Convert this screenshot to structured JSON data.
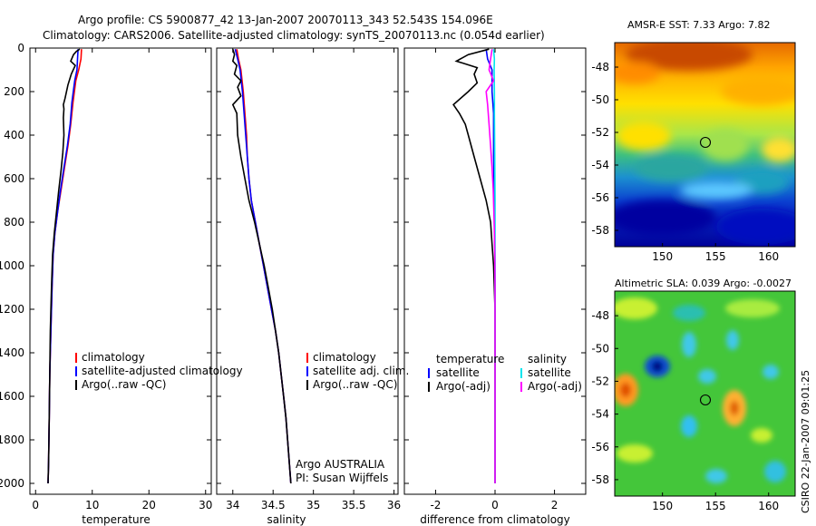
{
  "title": {
    "line1": "Argo profile: CS 5900877_42 13-Jan-2007 20070113_343 52.543S 154.096E",
    "line2": "Climatology: CARS2006. Satellite-adjusted climatology: synTS_20070113.nc (0.054d earlier)"
  },
  "credit": "CSIRO 22-Jan-2007 09:01:25",
  "colors": {
    "clim": "#ff0000",
    "sat": "#0000ff",
    "argo": "#000000",
    "cyan": "#00e5ee",
    "magenta": "#ff00ff"
  },
  "chart_data": [
    {
      "type": "line",
      "id": "temperature",
      "xlabel": "temperature",
      "xlim": [
        -1,
        31
      ],
      "ylim": [
        2050,
        0
      ],
      "xticks": [
        0,
        10,
        20,
        30
      ],
      "yticks": [
        0,
        200,
        400,
        600,
        800,
        1000,
        1200,
        1400,
        1600,
        1800,
        2000
      ],
      "legend": [
        "climatology",
        "satellite-adjusted climatology",
        "Argo(..raw -QC)"
      ],
      "series": [
        {
          "name": "climatology",
          "color": "#ff0000",
          "points": [
            [
              8.1,
              5
            ],
            [
              8.0,
              50
            ],
            [
              7.6,
              100
            ],
            [
              7.1,
              150
            ],
            [
              6.6,
              250
            ],
            [
              6.2,
              350
            ],
            [
              5.7,
              450
            ],
            [
              5.1,
              550
            ],
            [
              4.5,
              650
            ],
            [
              3.9,
              750
            ],
            [
              3.4,
              850
            ],
            [
              3.1,
              950
            ],
            [
              2.9,
              1100
            ],
            [
              2.7,
              1300
            ],
            [
              2.5,
              1500
            ],
            [
              2.4,
              1700
            ],
            [
              2.3,
              1900
            ],
            [
              2.2,
              2000
            ]
          ]
        },
        {
          "name": "satellite-adjusted climatology",
          "color": "#0000ff",
          "points": [
            [
              7.5,
              5
            ],
            [
              7.4,
              50
            ],
            [
              7.3,
              100
            ],
            [
              6.9,
              150
            ],
            [
              6.4,
              250
            ],
            [
              6.1,
              350
            ],
            [
              5.6,
              450
            ],
            [
              5.0,
              550
            ],
            [
              4.4,
              650
            ],
            [
              3.9,
              750
            ],
            [
              3.4,
              850
            ],
            [
              3.1,
              950
            ],
            [
              2.9,
              1100
            ],
            [
              2.7,
              1300
            ],
            [
              2.5,
              1500
            ],
            [
              2.4,
              1700
            ],
            [
              2.3,
              1900
            ],
            [
              2.2,
              2000
            ]
          ]
        },
        {
          "name": "Argo(..raw -QC)",
          "color": "#000000",
          "points": [
            [
              7.8,
              5
            ],
            [
              7.2,
              15
            ],
            [
              6.7,
              30
            ],
            [
              6.2,
              60
            ],
            [
              7.0,
              80
            ],
            [
              6.3,
              120
            ],
            [
              5.7,
              170
            ],
            [
              5.2,
              230
            ],
            [
              4.9,
              260
            ],
            [
              5.0,
              280
            ],
            [
              4.9,
              320
            ],
            [
              5.0,
              400
            ],
            [
              4.8,
              480
            ],
            [
              4.5,
              560
            ],
            [
              4.1,
              650
            ],
            [
              3.7,
              750
            ],
            [
              3.3,
              850
            ],
            [
              3.0,
              950
            ],
            [
              2.8,
              1100
            ],
            [
              2.6,
              1300
            ],
            [
              2.5,
              1500
            ],
            [
              2.4,
              1700
            ],
            [
              2.3,
              1900
            ],
            [
              2.2,
              2000
            ]
          ]
        }
      ]
    },
    {
      "type": "line",
      "id": "salinity",
      "xlabel": "salinity",
      "xlim": [
        33.8,
        36.05
      ],
      "ylim": [
        2050,
        0
      ],
      "xticks": [
        34,
        34.5,
        35,
        35.5,
        36
      ],
      "tick_labels": [
        "34",
        "34.5",
        "35",
        "35.5",
        "36"
      ],
      "legend": [
        "climatology",
        "satellite adj. clim.",
        "Argo(..raw -QC)"
      ],
      "annotations": [
        "Argo AUSTRALIA",
        "PI: Susan Wijffels"
      ],
      "series": [
        {
          "name": "climatology",
          "color": "#ff0000",
          "points": [
            [
              34.05,
              5
            ],
            [
              34.07,
              50
            ],
            [
              34.1,
              100
            ],
            [
              34.13,
              200
            ],
            [
              34.15,
              300
            ],
            [
              34.17,
              400
            ],
            [
              34.18,
              500
            ],
            [
              34.2,
              600
            ],
            [
              34.23,
              700
            ],
            [
              34.28,
              800
            ],
            [
              34.33,
              900
            ],
            [
              34.38,
              1000
            ],
            [
              34.43,
              1100
            ],
            [
              34.48,
              1200
            ],
            [
              34.53,
              1300
            ],
            [
              34.57,
              1400
            ],
            [
              34.6,
              1500
            ],
            [
              34.63,
              1600
            ],
            [
              34.66,
              1700
            ],
            [
              34.68,
              1800
            ],
            [
              34.7,
              1900
            ],
            [
              34.72,
              2000
            ]
          ]
        },
        {
          "name": "satellite adj. clim.",
          "color": "#0000ff",
          "points": [
            [
              34.03,
              5
            ],
            [
              34.06,
              50
            ],
            [
              34.09,
              100
            ],
            [
              34.12,
              200
            ],
            [
              34.14,
              300
            ],
            [
              34.16,
              400
            ],
            [
              34.18,
              500
            ],
            [
              34.2,
              600
            ],
            [
              34.23,
              700
            ],
            [
              34.28,
              800
            ],
            [
              34.33,
              900
            ],
            [
              34.38,
              1000
            ],
            [
              34.43,
              1100
            ],
            [
              34.48,
              1200
            ],
            [
              34.53,
              1300
            ],
            [
              34.57,
              1400
            ],
            [
              34.6,
              1500
            ],
            [
              34.63,
              1600
            ],
            [
              34.66,
              1700
            ],
            [
              34.68,
              1800
            ],
            [
              34.7,
              1900
            ],
            [
              34.72,
              2000
            ]
          ]
        },
        {
          "name": "Argo(..raw -QC)",
          "color": "#000000",
          "points": [
            [
              34.0,
              5
            ],
            [
              34.02,
              30
            ],
            [
              34.0,
              60
            ],
            [
              34.05,
              80
            ],
            [
              34.02,
              120
            ],
            [
              34.1,
              150
            ],
            [
              34.06,
              180
            ],
            [
              34.1,
              220
            ],
            [
              34.0,
              260
            ],
            [
              34.05,
              300
            ],
            [
              34.06,
              400
            ],
            [
              34.1,
              500
            ],
            [
              34.15,
              600
            ],
            [
              34.2,
              700
            ],
            [
              34.27,
              800
            ],
            [
              34.33,
              900
            ],
            [
              34.39,
              1000
            ],
            [
              34.44,
              1100
            ],
            [
              34.49,
              1200
            ],
            [
              34.53,
              1300
            ],
            [
              34.57,
              1400
            ],
            [
              34.6,
              1500
            ],
            [
              34.63,
              1600
            ],
            [
              34.66,
              1700
            ],
            [
              34.68,
              1800
            ],
            [
              34.7,
              1900
            ],
            [
              34.72,
              2000
            ]
          ]
        }
      ]
    },
    {
      "type": "line",
      "id": "difference",
      "xlabel": "difference from climatology",
      "xlim": [
        -3.05,
        3.05
      ],
      "ylim": [
        2050,
        0
      ],
      "xticks": [
        -2,
        0,
        2
      ],
      "legend_left": [
        "temperature",
        "satellite",
        "Argo(-adj)"
      ],
      "legend_right": [
        "salinity",
        "satellite",
        "Argo(-adj)"
      ],
      "series": [
        {
          "name": "temperature satellite",
          "color": "#0000ff",
          "points": [
            [
              -0.3,
              5
            ],
            [
              -0.25,
              50
            ],
            [
              -0.1,
              100
            ],
            [
              -0.1,
              200
            ],
            [
              -0.05,
              300
            ],
            [
              -0.05,
              500
            ],
            [
              -0.02,
              700
            ],
            [
              -0.01,
              900
            ],
            [
              0,
              1100
            ],
            [
              0,
              1300
            ],
            [
              0,
              1500
            ],
            [
              0,
              1700
            ],
            [
              0,
              1900
            ],
            [
              0,
              2000
            ]
          ]
        },
        {
          "name": "temperature Argo(-adj)",
          "color": "#000000",
          "points": [
            [
              -0.2,
              5
            ],
            [
              -0.9,
              30
            ],
            [
              -1.3,
              60
            ],
            [
              -0.6,
              90
            ],
            [
              -0.7,
              120
            ],
            [
              -0.6,
              160
            ],
            [
              -0.9,
              200
            ],
            [
              -1.4,
              260
            ],
            [
              -1.2,
              300
            ],
            [
              -1.0,
              350
            ],
            [
              -0.9,
              400
            ],
            [
              -0.7,
              500
            ],
            [
              -0.5,
              600
            ],
            [
              -0.3,
              700
            ],
            [
              -0.15,
              800
            ],
            [
              -0.1,
              900
            ],
            [
              -0.05,
              1000
            ],
            [
              0,
              1200
            ],
            [
              0,
              2000
            ]
          ]
        },
        {
          "name": "salinity satellite",
          "color": "#00e5ee",
          "points": [
            [
              -0.05,
              5
            ],
            [
              -0.02,
              50
            ],
            [
              -0.03,
              100
            ],
            [
              -0.02,
              200
            ],
            [
              -0.02,
              300
            ],
            [
              -0.01,
              500
            ],
            [
              0,
              700
            ],
            [
              0,
              1000
            ],
            [
              0,
              1500
            ],
            [
              0,
              2000
            ]
          ]
        },
        {
          "name": "salinity Argo(-adj)",
          "color": "#ff00ff",
          "points": [
            [
              -0.1,
              5
            ],
            [
              -0.15,
              50
            ],
            [
              -0.2,
              100
            ],
            [
              -0.05,
              150
            ],
            [
              -0.3,
              200
            ],
            [
              -0.25,
              260
            ],
            [
              -0.2,
              350
            ],
            [
              -0.15,
              450
            ],
            [
              -0.1,
              550
            ],
            [
              -0.06,
              650
            ],
            [
              -0.04,
              750
            ],
            [
              -0.02,
              850
            ],
            [
              -0.01,
              950
            ],
            [
              0,
              1100
            ],
            [
              0,
              1500
            ],
            [
              0,
              2000
            ]
          ]
        }
      ]
    },
    {
      "type": "heatmap",
      "id": "sst",
      "title": "AMSR-E SST: 7.33 Argo: 7.82",
      "xlim": [
        145.5,
        162.5
      ],
      "ylim": [
        -59,
        -46.5
      ],
      "xticks": [
        150,
        155,
        160
      ],
      "yticks": [
        -48,
        -50,
        -52,
        -54,
        -56,
        -58
      ],
      "float_position": [
        154.1,
        -52.54
      ]
    },
    {
      "type": "heatmap",
      "id": "sla",
      "title": "Altimetric SLA: 0.039 Argo: -0.0027",
      "xlim": [
        145.5,
        162.5
      ],
      "ylim": [
        -59,
        -46.5
      ],
      "xticks": [
        150,
        155,
        160
      ],
      "yticks": [
        -48,
        -50,
        -52,
        -54,
        -56,
        -58
      ],
      "float_position": [
        154.1,
        -52.54
      ]
    }
  ]
}
